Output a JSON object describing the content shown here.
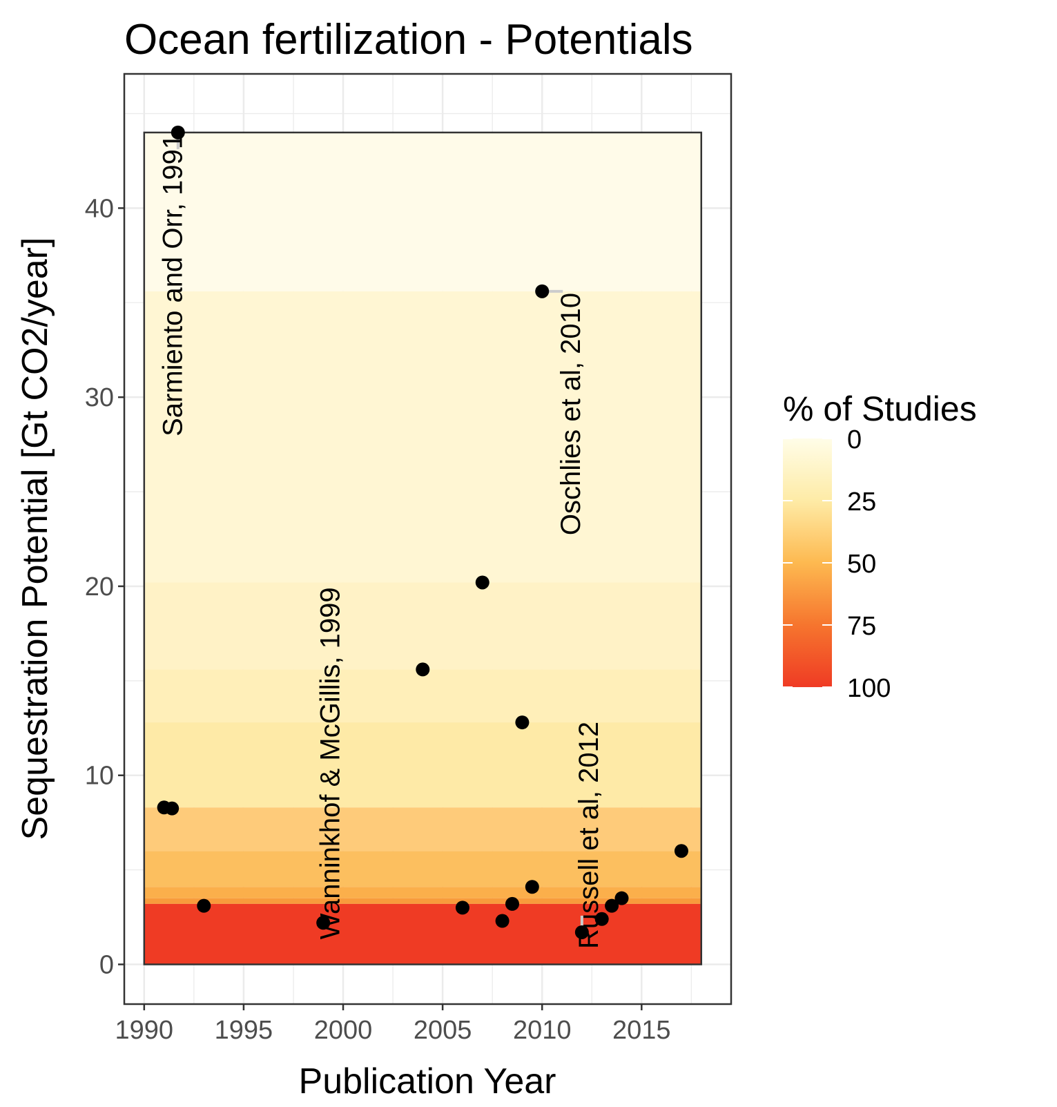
{
  "chart_data": {
    "type": "scatter",
    "title": "Ocean fertilization - Potentials",
    "xlabel": "Publication Year",
    "ylabel": "Sequestration Potential [Gt CO2/year]",
    "xlim": [
      1989,
      2019.5
    ],
    "ylim": [
      -2.1,
      47.1
    ],
    "x_ticks": [
      1990,
      1995,
      2000,
      2005,
      2010,
      2015
    ],
    "y_ticks": [
      0,
      10,
      20,
      30,
      40
    ],
    "grid": true,
    "points": [
      {
        "x": 1991.0,
        "y": 8.3
      },
      {
        "x": 1991.4,
        "y": 8.25
      },
      {
        "x": 1991.7,
        "y": 44.0
      },
      {
        "x": 1993.0,
        "y": 3.1
      },
      {
        "x": 1999.0,
        "y": 2.2
      },
      {
        "x": 2004.0,
        "y": 15.6
      },
      {
        "x": 2006.0,
        "y": 3.0
      },
      {
        "x": 2007.0,
        "y": 20.2
      },
      {
        "x": 2008.0,
        "y": 2.3
      },
      {
        "x": 2008.5,
        "y": 3.2
      },
      {
        "x": 2009.0,
        "y": 12.8
      },
      {
        "x": 2009.5,
        "y": 4.1
      },
      {
        "x": 2010.0,
        "y": 35.6
      },
      {
        "x": 2012.0,
        "y": 1.7
      },
      {
        "x": 2013.0,
        "y": 2.4
      },
      {
        "x": 2013.5,
        "y": 3.1
      },
      {
        "x": 2014.0,
        "y": 3.5
      },
      {
        "x": 2017.0,
        "y": 6.0
      }
    ],
    "annotations": [
      {
        "text": "Sarmiento and Orr, 1991",
        "x": 1991.7,
        "y": 44.0
      },
      {
        "text": "Oschlies et al, 2010",
        "x": 2010.0,
        "y": 35.6
      },
      {
        "text": "Wanninkhof & McGillis, 1999",
        "x": 1999.0,
        "y": 2.2
      },
      {
        "text": "Russell et al, 2012",
        "x": 2012.0,
        "y": 1.7
      }
    ],
    "background_band": {
      "x_range": [
        1990,
        2018
      ],
      "y_range": [
        0,
        44
      ],
      "levels": [
        {
          "y_from": 35.6,
          "y_to": 44.0,
          "percent": 5.6,
          "color": "#fffbe9"
        },
        {
          "y_from": 20.2,
          "y_to": 35.6,
          "percent": 11.1,
          "color": "#fff6d3"
        },
        {
          "y_from": 15.6,
          "y_to": 20.2,
          "percent": 16.7,
          "color": "#fff2c6"
        },
        {
          "y_from": 12.8,
          "y_to": 15.6,
          "percent": 22.2,
          "color": "#ffefb9"
        },
        {
          "y_from": 8.3,
          "y_to": 12.8,
          "percent": 27.8,
          "color": "#feeaa7"
        },
        {
          "y_from": 6.0,
          "y_to": 8.3,
          "percent": 38.9,
          "color": "#fecb7a"
        },
        {
          "y_from": 4.1,
          "y_to": 6.0,
          "percent": 44.4,
          "color": "#fcbf5f"
        },
        {
          "y_from": 3.5,
          "y_to": 4.1,
          "percent": 50.0,
          "color": "#fbaf4b"
        },
        {
          "y_from": 3.2,
          "y_to": 3.5,
          "percent": 55.6,
          "color": "#f89b3c"
        },
        {
          "y_from": 0.0,
          "y_to": 3.2,
          "percent": 94.4,
          "color": "#ef3b24"
        }
      ]
    },
    "legend": {
      "title": "% of Studies",
      "position": "right",
      "ticks": [
        0,
        25,
        50,
        75,
        100
      ],
      "colors": [
        "#fffde8",
        "#feeba6",
        "#fdb950",
        "#f6752e",
        "#ef3b24"
      ]
    }
  }
}
